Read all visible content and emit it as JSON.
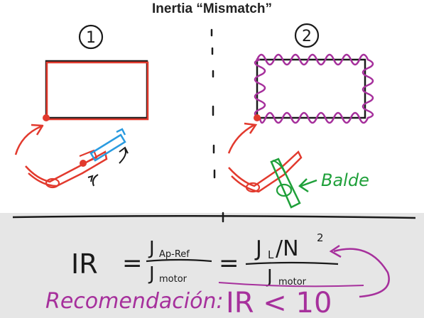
{
  "title": "Inertia “Mismatch”",
  "panels": [
    {
      "number": "1"
    },
    {
      "number": "2",
      "annotation": "Balde"
    }
  ],
  "formula": {
    "lhs": "IR",
    "equals": "=",
    "frac1_num": "J",
    "frac1_num_sub": "Ap-Ref",
    "frac1_den": "J",
    "frac1_den_sub": "motor",
    "frac2_num": "J",
    "frac2_num_sub": "L",
    "frac2_num_slash": "/N",
    "frac2_num_sup": "2",
    "frac2_den": "J",
    "frac2_den_sub": "motor"
  },
  "recommendation": {
    "label": "Recomendación:",
    "value": "IR < 10"
  },
  "colors": {
    "ink_black": "#1a1a1a",
    "ink_red": "#e23a2e",
    "ink_blue": "#2a9be0",
    "ink_green": "#1fa03a",
    "ink_purple": "#a6309c",
    "board": "#ffffff",
    "lower_board": "#e4e4e4"
  }
}
